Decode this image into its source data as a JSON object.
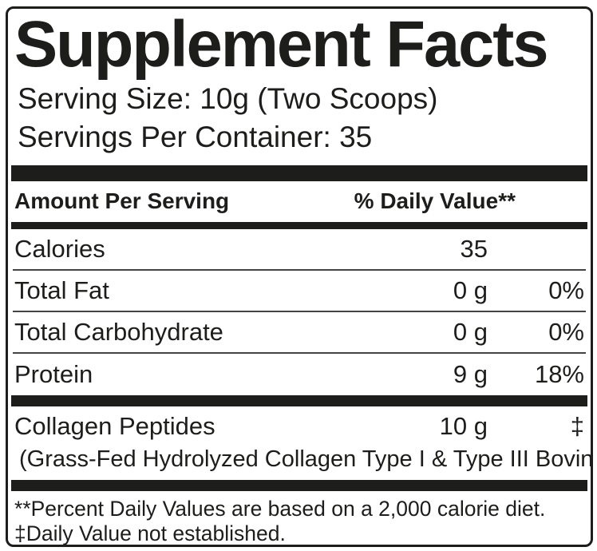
{
  "label": {
    "title": "Supplement Facts",
    "serving_size": "Serving Size: 10g (Two Scoops)",
    "servings_per_container": "Servings Per Container: 35",
    "header": {
      "left": "Amount Per Serving",
      "right": "% Daily Value**"
    },
    "rows": [
      {
        "name": "Calories",
        "amount": "35",
        "daily_value": ""
      },
      {
        "name": "Total Fat",
        "amount": "0 g",
        "daily_value": "0%"
      },
      {
        "name": "Total Carbohydrate",
        "amount": "0 g",
        "daily_value": "0%"
      },
      {
        "name": "Protein",
        "amount": "9 g",
        "daily_value": "18%"
      }
    ],
    "ingredient": {
      "name": "Collagen Peptides",
      "amount": "10 g",
      "daily_value": "‡",
      "description": "(Grass-Fed Hydrolyzed Collagen Type I & Type III Bovine)"
    },
    "footnotes": [
      "**Percent Daily Values are based on a 2,000 calorie diet.",
      "‡Daily Value not established."
    ],
    "colors": {
      "ink": "#1d1d1b",
      "background": "#ffffff"
    }
  }
}
